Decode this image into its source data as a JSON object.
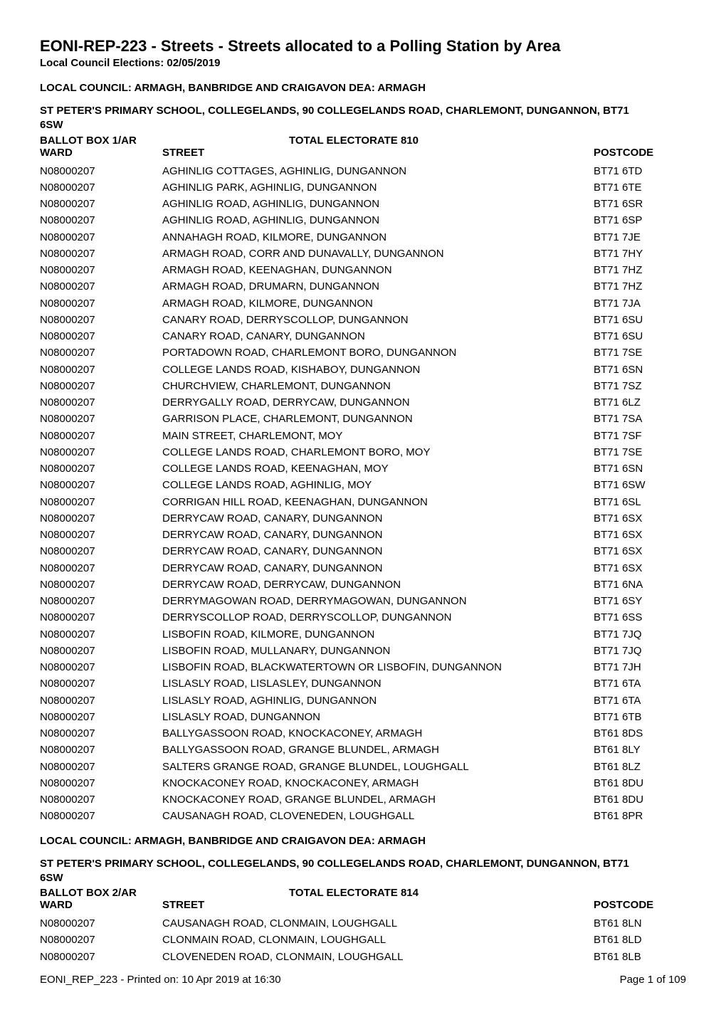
{
  "report": {
    "title": "EONI-REP-223 - Streets - Streets allocated to a Polling Station by Area",
    "subtitle": "Local Council Elections: 02/05/2019",
    "footer_left": "EONI_REP_223 - Printed on: 10 Apr 2019 at 16:30",
    "footer_right": "Page 1 of 109"
  },
  "labels": {
    "ward": "WARD",
    "street": "STREET",
    "postcode": "POSTCODE"
  },
  "sections": [
    {
      "council_heading": "LOCAL COUNCIL: ARMAGH, BANBRIDGE AND CRAIGAVON DEA: ARMAGH",
      "venue_line1": "ST PETER'S PRIMARY SCHOOL, COLLEGELANDS, 90 COLLEGELANDS ROAD, CHARLEMONT, DUNGANNON, BT71",
      "venue_line2": "6SW",
      "ballot_box": "BALLOT BOX 1/AR",
      "electorate": "TOTAL ELECTORATE 810",
      "rows": [
        {
          "ward": "N08000207",
          "street": "AGHINLIG COTTAGES, AGHINLIG, DUNGANNON",
          "postcode": "BT71 6TD"
        },
        {
          "ward": "N08000207",
          "street": "AGHINLIG PARK, AGHINLIG, DUNGANNON",
          "postcode": "BT71 6TE"
        },
        {
          "ward": "N08000207",
          "street": "AGHINLIG ROAD, AGHINLIG, DUNGANNON",
          "postcode": "BT71 6SR"
        },
        {
          "ward": "N08000207",
          "street": "AGHINLIG ROAD, AGHINLIG, DUNGANNON",
          "postcode": "BT71 6SP"
        },
        {
          "ward": "N08000207",
          "street": "ANNAHAGH ROAD, KILMORE, DUNGANNON",
          "postcode": "BT71 7JE"
        },
        {
          "ward": "N08000207",
          "street": "ARMAGH ROAD, CORR AND DUNAVALLY, DUNGANNON",
          "postcode": "BT71 7HY"
        },
        {
          "ward": "N08000207",
          "street": "ARMAGH ROAD, KEENAGHAN, DUNGANNON",
          "postcode": "BT71 7HZ"
        },
        {
          "ward": "N08000207",
          "street": "ARMAGH ROAD, DRUMARN, DUNGANNON",
          "postcode": "BT71 7HZ"
        },
        {
          "ward": "N08000207",
          "street": "ARMAGH ROAD, KILMORE, DUNGANNON",
          "postcode": "BT71 7JA"
        },
        {
          "ward": "N08000207",
          "street": "CANARY ROAD, DERRYSCOLLOP, DUNGANNON",
          "postcode": "BT71 6SU"
        },
        {
          "ward": "N08000207",
          "street": "CANARY ROAD, CANARY, DUNGANNON",
          "postcode": "BT71 6SU"
        },
        {
          "ward": "N08000207",
          "street": "PORTADOWN ROAD, CHARLEMONT BORO, DUNGANNON",
          "postcode": "BT71 7SE"
        },
        {
          "ward": "N08000207",
          "street": "COLLEGE LANDS ROAD, KISHABOY, DUNGANNON",
          "postcode": "BT71 6SN"
        },
        {
          "ward": "N08000207",
          "street": "CHURCHVIEW, CHARLEMONT, DUNGANNON",
          "postcode": "BT71 7SZ"
        },
        {
          "ward": "N08000207",
          "street": "DERRYGALLY ROAD, DERRYCAW, DUNGANNON",
          "postcode": "BT71 6LZ"
        },
        {
          "ward": "N08000207",
          "street": "GARRISON PLACE, CHARLEMONT, DUNGANNON",
          "postcode": "BT71 7SA"
        },
        {
          "ward": "N08000207",
          "street": "MAIN STREET, CHARLEMONT, MOY",
          "postcode": "BT71 7SF"
        },
        {
          "ward": "N08000207",
          "street": "COLLEGE LANDS ROAD, CHARLEMONT BORO, MOY",
          "postcode": "BT71 7SE"
        },
        {
          "ward": "N08000207",
          "street": "COLLEGE LANDS ROAD, KEENAGHAN, MOY",
          "postcode": "BT71 6SN"
        },
        {
          "ward": "N08000207",
          "street": "COLLEGE LANDS ROAD, AGHINLIG, MOY",
          "postcode": "BT71 6SW"
        },
        {
          "ward": "N08000207",
          "street": "CORRIGAN HILL ROAD, KEENAGHAN, DUNGANNON",
          "postcode": "BT71 6SL"
        },
        {
          "ward": "N08000207",
          "street": "DERRYCAW ROAD, CANARY, DUNGANNON",
          "postcode": "BT71 6SX"
        },
        {
          "ward": "N08000207",
          "street": "DERRYCAW ROAD, CANARY, DUNGANNON",
          "postcode": "BT71 6SX"
        },
        {
          "ward": "N08000207",
          "street": "DERRYCAW ROAD, CANARY, DUNGANNON",
          "postcode": "BT71 6SX"
        },
        {
          "ward": "N08000207",
          "street": "DERRYCAW ROAD, CANARY, DUNGANNON",
          "postcode": "BT71 6SX"
        },
        {
          "ward": "N08000207",
          "street": "DERRYCAW ROAD, DERRYCAW, DUNGANNON",
          "postcode": "BT71 6NA"
        },
        {
          "ward": "N08000207",
          "street": "DERRYMAGOWAN ROAD, DERRYMAGOWAN, DUNGANNON",
          "postcode": "BT71 6SY"
        },
        {
          "ward": "N08000207",
          "street": "DERRYSCOLLOP ROAD, DERRYSCOLLOP, DUNGANNON",
          "postcode": "BT71 6SS"
        },
        {
          "ward": "N08000207",
          "street": "LISBOFIN ROAD, KILMORE, DUNGANNON",
          "postcode": "BT71 7JQ"
        },
        {
          "ward": "N08000207",
          "street": "LISBOFIN ROAD, MULLANARY, DUNGANNON",
          "postcode": "BT71 7JQ"
        },
        {
          "ward": "N08000207",
          "street": "LISBOFIN ROAD, BLACKWATERTOWN OR LISBOFIN, DUNGANNON",
          "postcode": "BT71 7JH"
        },
        {
          "ward": "N08000207",
          "street": "LISLASLY ROAD, LISLASLEY, DUNGANNON",
          "postcode": "BT71 6TA"
        },
        {
          "ward": "N08000207",
          "street": "LISLASLY ROAD, AGHINLIG, DUNGANNON",
          "postcode": "BT71 6TA"
        },
        {
          "ward": "N08000207",
          "street": "LISLASLY ROAD, DUNGANNON",
          "postcode": "BT71 6TB"
        },
        {
          "ward": "N08000207",
          "street": "BALLYGASSOON ROAD, KNOCKACONEY, ARMAGH",
          "postcode": "BT61 8DS"
        },
        {
          "ward": "N08000207",
          "street": "BALLYGASSOON ROAD, GRANGE BLUNDEL, ARMAGH",
          "postcode": "BT61 8LY"
        },
        {
          "ward": "N08000207",
          "street": "SALTERS GRANGE ROAD, GRANGE BLUNDEL, LOUGHGALL",
          "postcode": "BT61 8LZ"
        },
        {
          "ward": "N08000207",
          "street": "KNOCKACONEY ROAD, KNOCKACONEY, ARMAGH",
          "postcode": "BT61 8DU"
        },
        {
          "ward": "N08000207",
          "street": "KNOCKACONEY ROAD, GRANGE BLUNDEL, ARMAGH",
          "postcode": "BT61 8DU"
        },
        {
          "ward": "N08000207",
          "street": "CAUSANAGH ROAD, CLOVENEDEN, LOUGHGALL",
          "postcode": "BT61 8PR"
        }
      ]
    },
    {
      "council_heading": "LOCAL COUNCIL: ARMAGH, BANBRIDGE AND CRAIGAVON DEA: ARMAGH",
      "venue_line1": "ST PETER'S PRIMARY SCHOOL, COLLEGELANDS, 90 COLLEGELANDS ROAD, CHARLEMONT, DUNGANNON, BT71",
      "venue_line2": "6SW",
      "ballot_box": "BALLOT BOX 2/AR",
      "electorate": "TOTAL ELECTORATE 814",
      "rows": [
        {
          "ward": "N08000207",
          "street": "CAUSANAGH ROAD, CLONMAIN, LOUGHGALL",
          "postcode": "BT61 8LN"
        },
        {
          "ward": "N08000207",
          "street": "CLONMAIN ROAD, CLONMAIN, LOUGHGALL",
          "postcode": "BT61 8LD"
        },
        {
          "ward": "N08000207",
          "street": "CLOVENEDEN ROAD, CLONMAIN, LOUGHGALL",
          "postcode": "BT61 8LB"
        }
      ]
    }
  ]
}
